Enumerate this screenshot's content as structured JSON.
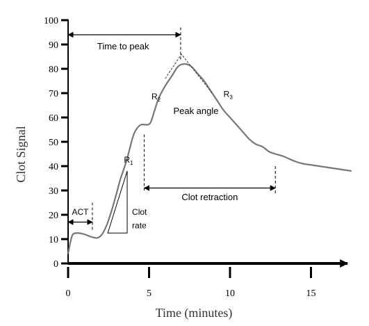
{
  "chart_data": {
    "type": "line",
    "title": "",
    "xlabel": "Time (minutes)",
    "ylabel": "Clot Signal",
    "xlim": [
      0,
      17.5
    ],
    "ylim": [
      0,
      100
    ],
    "x_ticks": [
      0,
      5,
      10,
      15
    ],
    "x_tick_labels": [
      "0",
      "5",
      "10",
      "15"
    ],
    "y_ticks": [
      0,
      10,
      20,
      30,
      40,
      50,
      60,
      70,
      80,
      90,
      100
    ],
    "y_tick_labels": [
      "0",
      "10",
      "20",
      "30",
      "40",
      "50",
      "60",
      "70",
      "80",
      "90",
      "100"
    ],
    "grid": false,
    "series": [
      {
        "x": [
          0,
          0.15,
          0.3,
          0.6,
          1.0,
          1.4,
          1.8,
          2.1,
          2.4,
          2.7,
          3.0,
          3.2,
          3.4,
          3.6,
          3.8,
          4.0,
          4.2,
          4.5,
          4.9,
          5.1,
          5.3,
          5.6,
          6.0,
          6.4,
          6.8,
          7.2,
          7.6,
          8.0,
          8.4,
          8.8,
          9.2,
          9.6,
          10.0,
          10.4,
          10.8,
          11.2,
          11.6,
          12.0,
          12.4,
          12.8,
          13.3,
          14.0,
          14.5,
          15.0,
          15.5,
          16.0,
          16.5,
          17.0,
          17.5
        ],
        "y": [
          4,
          9,
          12,
          12.5,
          12,
          11,
          10.5,
          12,
          16,
          22,
          29,
          34,
          38,
          42,
          47,
          52,
          55,
          57,
          57,
          58,
          62,
          68,
          73,
          77,
          81,
          82,
          81,
          78,
          75,
          71,
          67,
          63,
          60,
          57,
          54,
          51,
          49,
          48,
          46,
          45,
          44,
          42,
          41,
          40.5,
          40,
          39.5,
          39,
          38.5,
          38
        ]
      }
    ],
    "annotations": {
      "time_to_peak": "Time to peak",
      "act": "ACT",
      "clot_rate_line1": "Clot",
      "clot_rate_line2": "rate",
      "r1_base": "R",
      "r1_sub": "1",
      "r2_base": "R",
      "r2_sub": "2",
      "r3_base": "R",
      "r3_sub": "3",
      "peak_angle": "Peak angle",
      "clot_retraction": "Clot retraction"
    }
  }
}
